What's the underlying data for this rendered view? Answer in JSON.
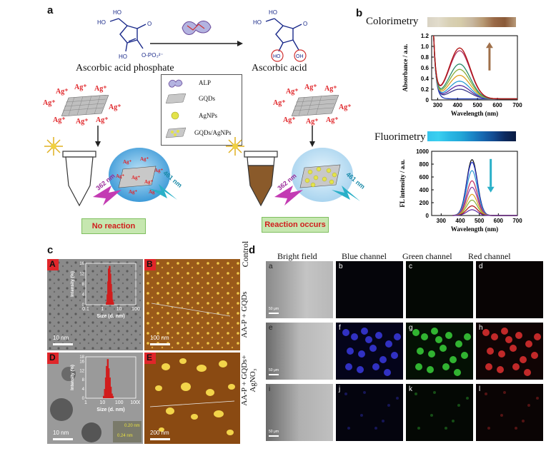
{
  "panel_a": {
    "label": "a",
    "left_caption": "Ascorbic acid phosphate",
    "right_caption": "Ascorbic acid",
    "ag_symbol": "Ag",
    "legend": [
      "ALP",
      "GQDs",
      "AgNPs",
      "GQDs/AgNPs"
    ],
    "nm_362": "362 nm",
    "nm_461": "461 nm",
    "result_left": "No reaction",
    "result_right": "Reaction occurs",
    "ho": "HO",
    "oh": "OH",
    "o": "O",
    "po3": "O-PO₃²⁻"
  },
  "panel_b": {
    "label": "b",
    "colorimetry_title": "Colorimetry",
    "fluorimetry_title": "Fluorimetry"
  },
  "chart_data": [
    {
      "type": "line",
      "ylabel": "Absorbance / a.u.",
      "xlabel": "Wavelength (nm)",
      "xlim": [
        270,
        700
      ],
      "ylim": [
        0,
        1.2
      ],
      "xticks": [
        "300",
        "400",
        "500",
        "600",
        "700"
      ],
      "yticks": [
        "0",
        "0.2",
        "0.4",
        "0.6",
        "0.8",
        "1.0",
        "1.2"
      ],
      "series": [
        {
          "color": "#1f3bb3",
          "peak": 0.0
        },
        {
          "color": "#3c3c8c",
          "peak": 0.18
        },
        {
          "color": "#5a2aa0",
          "peak": 0.25
        },
        {
          "color": "#2a9ad0",
          "peak": 0.33
        },
        {
          "color": "#e0a020",
          "peak": 0.44
        },
        {
          "color": "#8ab03a",
          "peak": 0.55
        },
        {
          "color": "#2a8a6a",
          "peak": 0.65
        },
        {
          "color": "#b03060",
          "peak": 0.9
        },
        {
          "color": "#b01010",
          "peak": 0.95
        }
      ]
    },
    {
      "type": "line",
      "ylabel": "FL intensity / a.u.",
      "xlabel": "Wavelength (nm)",
      "xlim": [
        250,
        700
      ],
      "ylim": [
        0,
        1000
      ],
      "xticks": [
        "300",
        "400",
        "500",
        "600",
        "700"
      ],
      "yticks": [
        "0",
        "200",
        "400",
        "600",
        "800",
        "1000"
      ],
      "series": [
        {
          "color": "#111111",
          "peak": 870
        },
        {
          "color": "#2a3ad0",
          "peak": 830
        },
        {
          "color": "#2a9ad0",
          "peak": 700
        },
        {
          "color": "#c03060",
          "peak": 540
        },
        {
          "color": "#8a3aa0",
          "peak": 440
        },
        {
          "color": "#e0a020",
          "peak": 330
        },
        {
          "color": "#8ab03a",
          "peak": 240
        },
        {
          "color": "#b01010",
          "peak": 150
        },
        {
          "color": "#5a2aa0",
          "peak": 90
        }
      ]
    },
    {
      "type": "bar",
      "xlabel": "Size (d. nm)",
      "ylabel": "Intensity (%)",
      "xticks": [
        "0.1",
        "1",
        "10",
        "100"
      ],
      "yticks": [
        "0",
        "4",
        "8",
        "12",
        "16"
      ],
      "ylim": [
        0,
        16
      ],
      "x": [
        1.8,
        2.0,
        2.2,
        2.4,
        2.7,
        3.0,
        3.3,
        3.6,
        4.0,
        4.4
      ],
      "values": [
        1,
        4,
        9,
        14,
        15,
        12,
        8,
        5,
        2,
        1
      ]
    },
    {
      "type": "bar",
      "xlabel": "Size (d. nm)",
      "ylabel": "Intensity (%)",
      "xticks": [
        "1",
        "10",
        "100",
        "1000"
      ],
      "yticks": [
        "0",
        "4",
        "8",
        "12",
        "16",
        "18"
      ],
      "ylim": [
        0,
        18
      ],
      "x": [
        12,
        14,
        16,
        18,
        21,
        24,
        28,
        32,
        37,
        42
      ],
      "values": [
        1,
        4,
        9,
        14,
        17,
        13,
        9,
        5,
        2,
        1
      ]
    }
  ],
  "panel_c": {
    "label": "c",
    "sub_A": "A",
    "sub_B": "B",
    "sub_D": "D",
    "sub_E": "E",
    "scale_A": "10 nm",
    "scale_B": "100 nm",
    "scale_D": "10 nm",
    "scale_E": "200 nm",
    "lattice_1": "0.20 nm",
    "lattice_2": "0.24 nm"
  },
  "panel_d": {
    "label": "d",
    "columns": [
      "Bright field",
      "Blue channel",
      "Green channel",
      "Red channel"
    ],
    "rows": [
      "Control",
      "AA-P + GQDs",
      "AA-P + GQDs+ AgNO₃"
    ],
    "row3_line1": "AA-P + GQDs+",
    "row3_line2": "AgNO₃",
    "cells": [
      [
        "a",
        "b",
        "c",
        "d"
      ],
      [
        "e",
        "f",
        "g",
        "h"
      ],
      [
        "i",
        "j",
        "k",
        "l"
      ]
    ],
    "scale": "50 μm"
  },
  "colors": {
    "ag_red": "#e0262a",
    "result_bg": "#c6e7b0",
    "arrow_brown": "#a0704a",
    "arrow_cyan": "#2ab0c8"
  }
}
